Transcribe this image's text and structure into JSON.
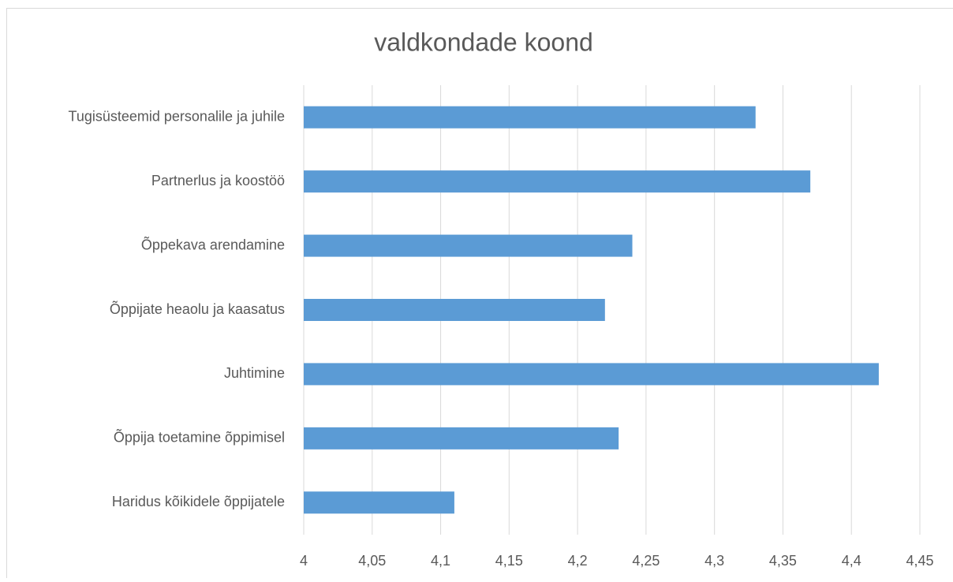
{
  "chart_data": {
    "type": "hbar",
    "title": "valdkondade koond",
    "categories": [
      "Tugisüsteemid personalile ja juhile",
      "Partnerlus ja koostöö",
      "Õppekava arendamine",
      "Õppijate heaolu ja kaasatus",
      "Juhtimine",
      "Õppija toetamine õppimisel",
      "Haridus kõikidele õppijatele"
    ],
    "values": [
      4.33,
      4.37,
      4.24,
      4.22,
      4.42,
      4.23,
      4.11
    ],
    "color": "#5b9bd5",
    "xlim": [
      4,
      4.45
    ],
    "xticks": [
      4,
      {
        "value": 4.05,
        "label": "4,05"
      },
      {
        "value": 4.1,
        "label": "4,1"
      },
      {
        "value": 4.15,
        "label": "4,15"
      },
      {
        "value": 4.2,
        "label": "4,2"
      },
      {
        "value": 4.25,
        "label": "4,25"
      },
      {
        "value": 4.3,
        "label": "4,3"
      },
      {
        "value": 4.35,
        "label": "4,35"
      },
      {
        "value": 4.4,
        "label": "4,4"
      },
      {
        "value": 4.45,
        "label": "4,45"
      }
    ],
    "grid": true
  }
}
